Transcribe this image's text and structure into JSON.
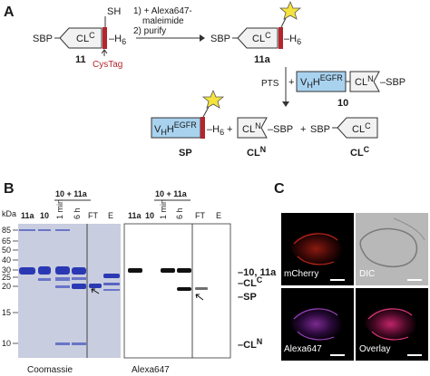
{
  "panelA": {
    "letter": "A",
    "sbp": "SBP",
    "cl": "CL",
    "sup_c": "C",
    "sup_n": "N",
    "sh": "SH",
    "h6": "–H",
    "six": "6",
    "cystag": "CysTag",
    "step1": "1) + Alexa647-",
    "step1b": "maleimide",
    "step2": "2) purify",
    "label_11": "11",
    "label_11a": "11a",
    "pts": "PTS",
    "plus": "+",
    "vhh": "V",
    "vhh_sub": "H",
    "vhh_h": "H",
    "egfr": "EGFR",
    "label_10": "10",
    "label_sp": "SP",
    "label_cln": "CL",
    "label_clc": "CL"
  },
  "panelB": {
    "letter": "B",
    "kda": "kDa",
    "mw": [
      "85",
      "65",
      "50",
      "40",
      "30",
      "25",
      "20",
      "15",
      "10"
    ],
    "group": "10 + 11a",
    "lanes_left": [
      "11a",
      "10",
      "1 min",
      "6 h",
      "FT",
      "E"
    ],
    "lanes_right": [
      "11a",
      "10",
      "1 min",
      "6 h",
      "FT",
      "E"
    ],
    "band_labels": [
      "10, 11a",
      "CL",
      "SP",
      "CL"
    ],
    "band_sups": [
      "",
      "C",
      "",
      "N"
    ],
    "stain_left": "Coomassie",
    "stain_right": "Alexa647"
  },
  "panelC": {
    "letter": "C",
    "captions": [
      "mCherry",
      "DIC",
      "Alexa647",
      "Overlay"
    ]
  },
  "colors": {
    "cystag": "#b3262c",
    "vhh_fill": "#a9d2ef",
    "star": "#f5e23c",
    "coomassie_bg": "#c9cde0",
    "coomassie_band": "#2a39b3"
  }
}
